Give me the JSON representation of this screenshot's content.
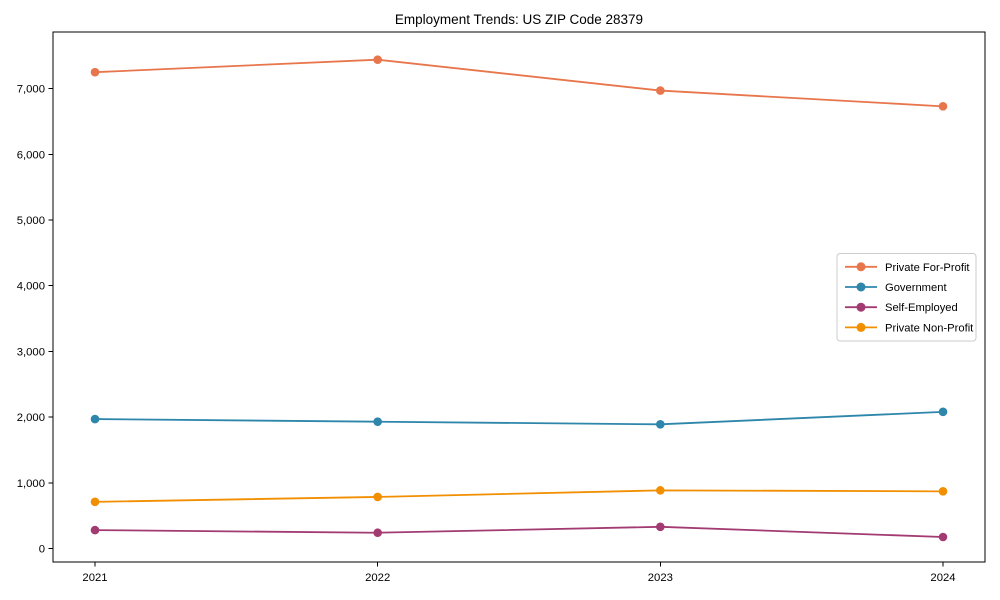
{
  "title": "Employment Trends: US ZIP Code 28379",
  "chart_data": {
    "type": "line",
    "title": "Employment Trends: US ZIP Code 28379",
    "xlabel": "",
    "ylabel": "",
    "x": [
      2021,
      2022,
      2023,
      2024
    ],
    "x_tick_labels": [
      "2021",
      "2022",
      "2023",
      "2024"
    ],
    "series": [
      {
        "name": "Private For-Profit",
        "color": "#E8764C",
        "values": [
          7250,
          7440,
          6970,
          6730
        ]
      },
      {
        "name": "Government",
        "color": "#2E86AB",
        "values": [
          1970,
          1930,
          1890,
          2080
        ]
      },
      {
        "name": "Self-Employed",
        "color": "#A23B72",
        "values": [
          280,
          240,
          330,
          175
        ]
      },
      {
        "name": "Private Non-Profit",
        "color": "#F18F01",
        "values": [
          710,
          785,
          885,
          870
        ]
      }
    ],
    "yticks": [
      0,
      1000,
      2000,
      3000,
      4000,
      5000,
      6000,
      7000
    ],
    "ytick_labels": [
      "0",
      "1,000",
      "2,000",
      "3,000",
      "4,000",
      "5,000",
      "6,000",
      "7,000"
    ],
    "ylim": [
      -205,
      7860
    ],
    "grid": false,
    "legend_position": "center-right",
    "marker": "circle",
    "line_width": 1.8,
    "axis_color": "#000000",
    "background_color": "#ffffff",
    "legend_border_color": "#cccccc"
  }
}
